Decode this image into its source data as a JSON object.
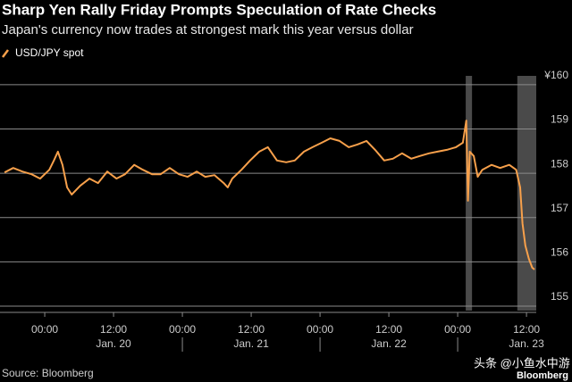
{
  "chart_data": {
    "type": "line",
    "title": "Sharp Yen Rally Friday Prompts Speculation of Rate Checks",
    "subtitle": "Japan's currency now trades at strongest mark this year versus dollar",
    "source": "Source: Bloomberg",
    "brand": "Bloomberg",
    "watermark": "头条 @小鱼水中游",
    "x": [
      -7.0,
      -5.5,
      -3.9,
      -2.3,
      -0.8,
      0.8,
      1.6,
      2.3,
      3.1,
      3.9,
      4.7,
      6.2,
      7.8,
      9.3,
      10.9,
      12.5,
      14.0,
      15.6,
      17.1,
      18.7,
      20.2,
      21.8,
      23.4,
      24.9,
      26.5,
      28.0,
      29.6,
      31.2,
      31.9,
      32.7,
      34.3,
      35.8,
      37.4,
      38.9,
      40.5,
      42.1,
      43.6,
      45.2,
      46.7,
      48.3,
      49.8,
      51.4,
      53.0,
      54.5,
      56.1,
      57.6,
      59.2,
      60.7,
      62.3,
      63.9,
      65.4,
      67.0,
      68.5,
      70.1,
      71.7,
      72.9,
      73.5,
      73.8,
      74.1,
      74.8,
      75.5,
      76.3,
      77.9,
      79.4,
      81.0,
      82.2,
      82.9,
      83.3,
      83.8,
      84.4,
      85.0,
      85.4
    ],
    "series": [
      {
        "name": "USD/JPY spot",
        "color": "#f7a04b",
        "values": [
          158.02,
          158.12,
          158.04,
          157.98,
          157.88,
          158.08,
          158.29,
          158.49,
          158.19,
          157.68,
          157.52,
          157.72,
          157.88,
          157.78,
          158.04,
          157.88,
          157.98,
          158.19,
          158.08,
          157.98,
          157.98,
          158.12,
          157.98,
          157.92,
          158.04,
          157.92,
          157.96,
          157.78,
          157.68,
          157.88,
          158.08,
          158.29,
          158.49,
          158.59,
          158.29,
          158.25,
          158.29,
          158.49,
          158.59,
          158.69,
          158.79,
          158.73,
          158.59,
          158.65,
          158.73,
          158.53,
          158.29,
          158.33,
          158.45,
          158.33,
          158.39,
          158.45,
          158.49,
          158.53,
          158.59,
          158.69,
          159.19,
          157.38,
          158.49,
          158.39,
          157.92,
          158.08,
          158.19,
          158.12,
          158.19,
          158.08,
          157.68,
          156.87,
          156.37,
          156.07,
          155.87,
          155.83
        ]
      }
    ],
    "xlim": [
      -7.8,
      85.7
    ],
    "xticks": [
      {
        "value": 0,
        "label": "00:00"
      },
      {
        "value": 12,
        "label": "12:00"
      },
      {
        "value": 24,
        "label": "00:00"
      },
      {
        "value": 36,
        "label": "12:00"
      },
      {
        "value": 48,
        "label": "00:00"
      },
      {
        "value": 60,
        "label": "12:00"
      },
      {
        "value": 72,
        "label": "00:00"
      },
      {
        "value": 84,
        "label": "12:00"
      }
    ],
    "day_labels": [
      {
        "value": 12,
        "label": "Jan. 20"
      },
      {
        "value": 36,
        "label": "Jan. 21"
      },
      {
        "value": 60,
        "label": "Jan. 22"
      },
      {
        "value": 84,
        "label": "Jan. 23"
      }
    ],
    "ylim": [
      154.9,
      160.2
    ],
    "yticks": [
      {
        "value": 160,
        "label": "¥160"
      },
      159,
      158,
      157,
      156,
      155
    ],
    "shaded_ranges": [
      [
        73.4,
        74.5
      ],
      [
        82.4,
        85.7
      ]
    ],
    "shade_color": "#4a4a4a",
    "grid": true
  }
}
